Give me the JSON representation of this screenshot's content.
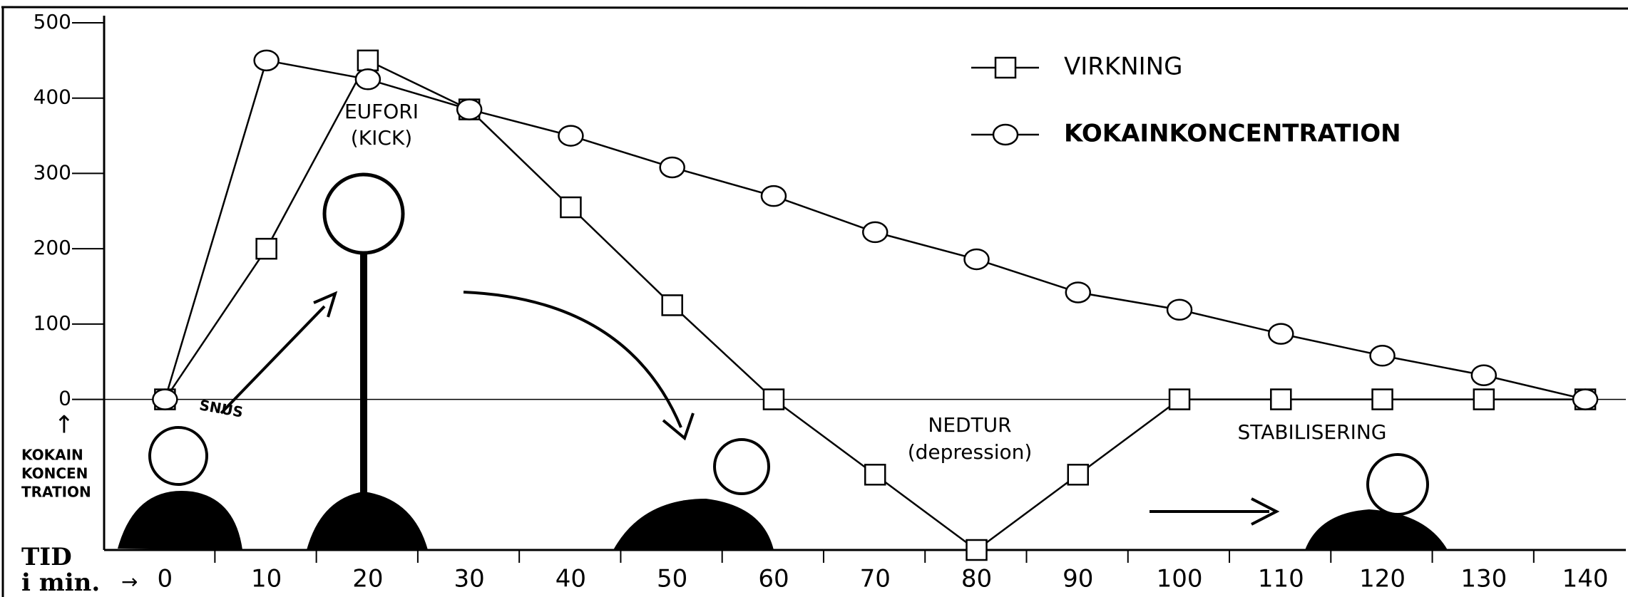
{
  "chart_data": {
    "type": "line",
    "x": [
      0,
      10,
      20,
      30,
      40,
      50,
      60,
      70,
      80,
      90,
      100,
      110,
      120,
      130,
      140
    ],
    "series": [
      {
        "name": "VIRKNING",
        "color": "#000000",
        "marker": "square",
        "values": [
          0,
          200,
          450,
          385,
          255,
          125,
          0,
          -100,
          -200,
          -100,
          0,
          0,
          0,
          0,
          0
        ]
      },
      {
        "name": "KOKAINKONCENTRATION",
        "color": "#000000",
        "marker": "circle",
        "values": [
          0,
          450,
          425,
          385,
          350,
          308,
          270,
          222,
          186,
          142,
          119,
          87,
          58,
          32,
          0
        ]
      }
    ],
    "xlim": [
      -6,
      144
    ],
    "xticks": [
      0,
      10,
      20,
      30,
      40,
      50,
      60,
      70,
      80,
      90,
      100,
      110,
      120,
      130,
      140
    ],
    "ylim": [
      -200,
      500
    ],
    "yticks": [
      0,
      100,
      200,
      300,
      400,
      500
    ],
    "y_label": [
      "KOKAIN",
      "KONCEN",
      "TRATION"
    ],
    "x_label": [
      "TID",
      "i min."
    ],
    "annotations": [
      "EUFORI",
      "(KICK)",
      "SNUS",
      "NEDTUR",
      "(depression)",
      "STABILISERING"
    ],
    "legend": "top-right"
  }
}
